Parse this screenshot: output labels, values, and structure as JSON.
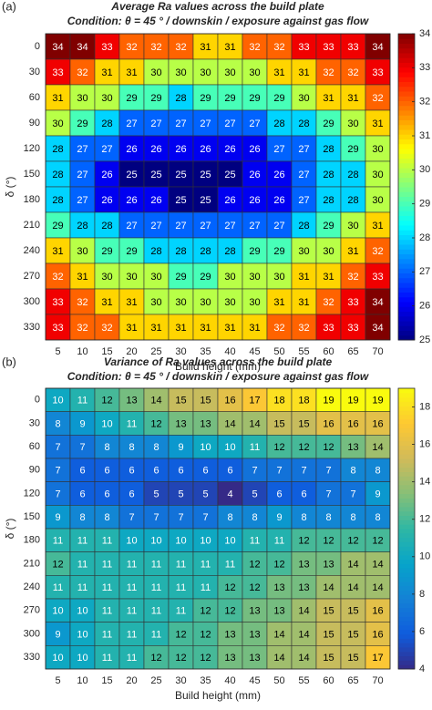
{
  "chart_data": [
    {
      "type": "heatmap",
      "panel_label": "(a)",
      "title": "Average Ra values across the build plate",
      "subtitle": "Condition: θ = 45 ° / downskin / exposure against gas flow",
      "xlabel": "Build height (mm)",
      "ylabel": "δ (°)",
      "x": [
        5,
        10,
        15,
        20,
        25,
        30,
        35,
        40,
        45,
        50,
        55,
        60,
        65,
        70
      ],
      "y": [
        0,
        30,
        60,
        90,
        120,
        150,
        180,
        210,
        240,
        270,
        300,
        330
      ],
      "values": [
        [
          34,
          34,
          33,
          32,
          32,
          32,
          31,
          31,
          32,
          32,
          33,
          33,
          33,
          34
        ],
        [
          33,
          32,
          31,
          31,
          30,
          30,
          30,
          30,
          30,
          31,
          31,
          32,
          32,
          33
        ],
        [
          31,
          30,
          30,
          29,
          29,
          28,
          29,
          29,
          29,
          29,
          30,
          31,
          31,
          32
        ],
        [
          30,
          29,
          28,
          27,
          27,
          27,
          27,
          27,
          27,
          28,
          28,
          29,
          30,
          31
        ],
        [
          28,
          27,
          27,
          26,
          26,
          26,
          26,
          26,
          26,
          27,
          27,
          28,
          29,
          30
        ],
        [
          28,
          27,
          26,
          25,
          25,
          25,
          25,
          25,
          26,
          26,
          27,
          28,
          28,
          30
        ],
        [
          28,
          27,
          26,
          26,
          26,
          25,
          25,
          26,
          26,
          26,
          27,
          28,
          28,
          30
        ],
        [
          29,
          28,
          28,
          27,
          27,
          27,
          27,
          27,
          27,
          27,
          28,
          29,
          30,
          31
        ],
        [
          31,
          30,
          29,
          29,
          28,
          28,
          28,
          28,
          29,
          29,
          30,
          30,
          31,
          32
        ],
        [
          32,
          31,
          30,
          30,
          30,
          29,
          29,
          30,
          30,
          30,
          31,
          31,
          32,
          33
        ],
        [
          33,
          32,
          31,
          31,
          30,
          30,
          30,
          30,
          30,
          31,
          31,
          32,
          33,
          34
        ],
        [
          33,
          32,
          32,
          31,
          31,
          31,
          31,
          31,
          31,
          32,
          32,
          33,
          33,
          34
        ]
      ],
      "zlim": [
        25,
        34
      ],
      "zticks": [
        25,
        26,
        27,
        28,
        29,
        30,
        31,
        32,
        33,
        34
      ],
      "colormap": "jet"
    },
    {
      "type": "heatmap",
      "panel_label": "(b)",
      "title": "Variance of Ra values across the build plate",
      "subtitle": "Condition: θ = 45 ° / downskin / exposure against gas flow",
      "xlabel": "Build height (mm)",
      "ylabel": "δ (°)",
      "x": [
        5,
        10,
        15,
        20,
        25,
        30,
        35,
        40,
        45,
        50,
        55,
        60,
        65,
        70
      ],
      "y": [
        0,
        30,
        60,
        90,
        120,
        150,
        180,
        210,
        240,
        270,
        300,
        330
      ],
      "values": [
        [
          10,
          11,
          12,
          13,
          14,
          15,
          15,
          16,
          17,
          18,
          18,
          19,
          19,
          19
        ],
        [
          8,
          9,
          10,
          11,
          12,
          13,
          13,
          14,
          14,
          15,
          15,
          16,
          16,
          16
        ],
        [
          7,
          7,
          8,
          8,
          8,
          9,
          10,
          10,
          11,
          12,
          12,
          12,
          13,
          14
        ],
        [
          7,
          6,
          6,
          6,
          6,
          6,
          6,
          6,
          7,
          7,
          7,
          7,
          8,
          8
        ],
        [
          7,
          6,
          6,
          6,
          5,
          5,
          5,
          4,
          5,
          6,
          6,
          7,
          7,
          9
        ],
        [
          9,
          8,
          8,
          7,
          7,
          7,
          7,
          8,
          8,
          9,
          8,
          8,
          8,
          8
        ],
        [
          11,
          11,
          11,
          10,
          10,
          10,
          10,
          10,
          11,
          11,
          12,
          12,
          12,
          12
        ],
        [
          12,
          11,
          11,
          11,
          11,
          11,
          11,
          11,
          12,
          12,
          13,
          13,
          14,
          14
        ],
        [
          11,
          11,
          11,
          11,
          11,
          11,
          11,
          12,
          12,
          13,
          13,
          14,
          14,
          14
        ],
        [
          10,
          10,
          11,
          11,
          11,
          11,
          12,
          12,
          13,
          13,
          14,
          15,
          15,
          16
        ],
        [
          9,
          10,
          11,
          11,
          11,
          12,
          12,
          13,
          13,
          14,
          14,
          15,
          15,
          16
        ],
        [
          10,
          10,
          11,
          11,
          12,
          12,
          12,
          13,
          13,
          14,
          14,
          15,
          15,
          17
        ]
      ],
      "zlim": [
        4,
        19
      ],
      "zticks": [
        4,
        6,
        8,
        10,
        12,
        14,
        16,
        18
      ],
      "colormap": "parula"
    }
  ]
}
